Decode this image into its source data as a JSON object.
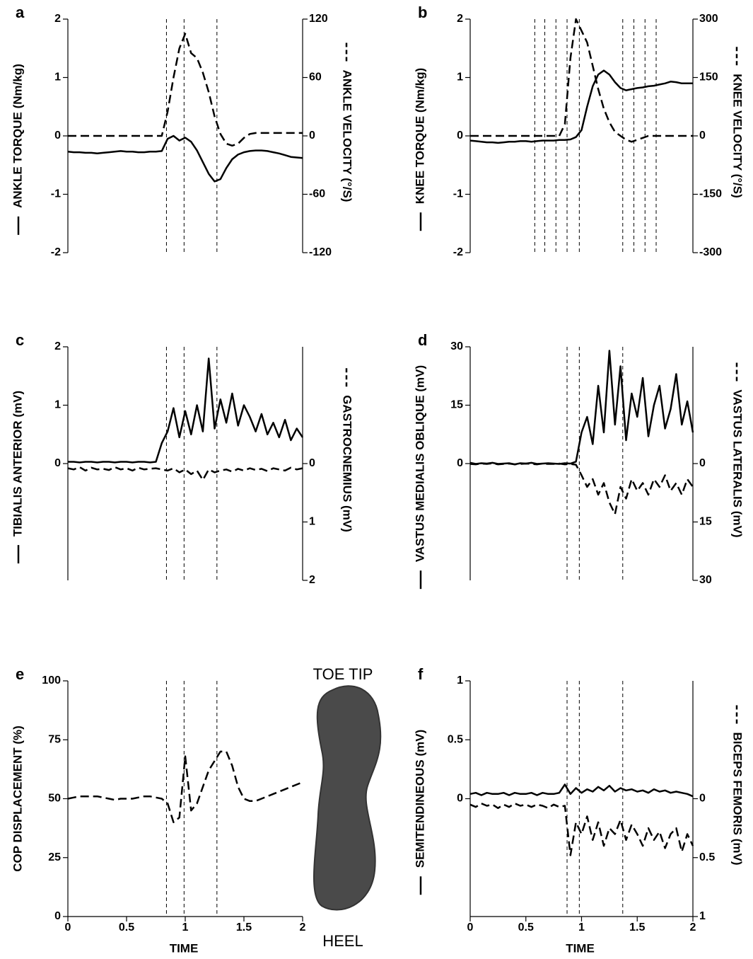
{
  "chart_data": [
    {
      "type": "line",
      "panel": "a",
      "ylabel": "ANKLE TORQUE (Nm/kg)",
      "y2label": "ANKLE VELOCITY (°/S)",
      "x": [
        0,
        0.05,
        0.1,
        0.15,
        0.2,
        0.25,
        0.3,
        0.35,
        0.4,
        0.45,
        0.5,
        0.55,
        0.6,
        0.65,
        0.7,
        0.75,
        0.8,
        0.85,
        0.9,
        0.95,
        1,
        1.05,
        1.1,
        1.15,
        1.2,
        1.25,
        1.3,
        1.35,
        1.4,
        1.45,
        1.5,
        1.55,
        1.6,
        1.65,
        1.7,
        1.75,
        1.8,
        1.85,
        1.9,
        1.95,
        2
      ],
      "xlim": [
        0,
        2
      ],
      "ylim": [
        -2,
        2
      ],
      "yticks": [
        -2,
        -1,
        0,
        1,
        2
      ],
      "y2lim": [
        -120,
        120
      ],
      "y2ticks": [
        -120,
        -60,
        0,
        60,
        120
      ],
      "vlines": [
        0.84,
        0.99,
        1.27
      ],
      "series": [
        {
          "color": "#000",
          "dash": false,
          "values": [
            -0.27,
            -0.28,
            -0.28,
            -0.29,
            -0.29,
            -0.3,
            -0.29,
            -0.28,
            -0.27,
            -0.26,
            -0.27,
            -0.27,
            -0.28,
            -0.28,
            -0.27,
            -0.27,
            -0.26,
            -0.05,
            0,
            -0.08,
            -0.03,
            -0.1,
            -0.25,
            -0.45,
            -0.65,
            -0.78,
            -0.74,
            -0.55,
            -0.4,
            -0.32,
            -0.28,
            -0.26,
            -0.25,
            -0.25,
            -0.26,
            -0.28,
            -0.3,
            -0.33,
            -0.36,
            -0.37,
            -0.38
          ]
        },
        {
          "color": "#000",
          "dash": true,
          "axis": "y2",
          "values": [
            0,
            0,
            0,
            0,
            0,
            0,
            0,
            0,
            0,
            0,
            0,
            0,
            0,
            0,
            0,
            0,
            0,
            25,
            60,
            90,
            105,
            85,
            80,
            65,
            45,
            20,
            2,
            -8,
            -10,
            -8,
            -2,
            2,
            3,
            3,
            3,
            3,
            3,
            3,
            3,
            3,
            3
          ]
        }
      ]
    },
    {
      "type": "line",
      "panel": "b",
      "ylabel": "KNEE TORQUE (Nm/kg)",
      "y2label": "KNEE VELOCITY (°/S)",
      "x": [
        0,
        0.05,
        0.1,
        0.15,
        0.2,
        0.25,
        0.3,
        0.35,
        0.4,
        0.45,
        0.5,
        0.55,
        0.6,
        0.65,
        0.7,
        0.75,
        0.8,
        0.85,
        0.9,
        0.95,
        1,
        1.05,
        1.1,
        1.15,
        1.2,
        1.25,
        1.3,
        1.35,
        1.4,
        1.45,
        1.5,
        1.55,
        1.6,
        1.65,
        1.7,
        1.75,
        1.8,
        1.85,
        1.9,
        1.95,
        2
      ],
      "xlim": [
        0,
        2
      ],
      "ylim": [
        -2,
        2
      ],
      "yticks": [
        -2,
        -1,
        0,
        1,
        2
      ],
      "y2lim": [
        -300,
        300
      ],
      "y2ticks": [
        -300,
        -150,
        0,
        150,
        300
      ],
      "vlines": [
        0.58,
        0.67,
        0.77,
        0.87,
        0.98,
        1.37,
        1.47,
        1.57,
        1.67
      ],
      "series": [
        {
          "color": "#000",
          "dash": false,
          "values": [
            -0.08,
            -0.09,
            -0.1,
            -0.11,
            -0.11,
            -0.12,
            -0.11,
            -0.1,
            -0.1,
            -0.09,
            -0.09,
            -0.1,
            -0.09,
            -0.08,
            -0.08,
            -0.08,
            -0.07,
            -0.07,
            -0.06,
            -0.02,
            0.1,
            0.5,
            0.85,
            1.05,
            1.12,
            1.05,
            0.92,
            0.82,
            0.78,
            0.8,
            0.82,
            0.83,
            0.85,
            0.86,
            0.88,
            0.9,
            0.93,
            0.92,
            0.9,
            0.9,
            0.9
          ]
        },
        {
          "color": "#000",
          "dash": true,
          "axis": "y2",
          "values": [
            0,
            0,
            0,
            0,
            0,
            0,
            0,
            0,
            0,
            0,
            0,
            0,
            0,
            0,
            0,
            0,
            0,
            30,
            200,
            300,
            270,
            240,
            180,
            120,
            70,
            35,
            10,
            0,
            -10,
            -15,
            -10,
            -5,
            0,
            0,
            0,
            0,
            0,
            0,
            0,
            0,
            0
          ]
        }
      ]
    },
    {
      "type": "line",
      "panel": "c",
      "ylabel": "TIBIALIS ANTERIOR (mV)",
      "y2label": "GASTROCNEMIUS (mV)",
      "x": [
        0,
        0.05,
        0.1,
        0.15,
        0.2,
        0.25,
        0.3,
        0.35,
        0.4,
        0.45,
        0.5,
        0.55,
        0.6,
        0.65,
        0.7,
        0.75,
        0.8,
        0.85,
        0.9,
        0.95,
        1,
        1.05,
        1.1,
        1.15,
        1.2,
        1.25,
        1.3,
        1.35,
        1.4,
        1.45,
        1.5,
        1.55,
        1.6,
        1.65,
        1.7,
        1.75,
        1.8,
        1.85,
        1.9,
        1.95,
        2
      ],
      "xlim": [
        0,
        2
      ],
      "ylim": [
        -2,
        2
      ],
      "yticks": [
        0,
        1,
        2
      ],
      "y2lim": [
        2,
        -2
      ],
      "y2ticks": [
        0,
        1,
        2
      ],
      "vlines": [
        0.84,
        0.99,
        1.27
      ],
      "series": [
        {
          "color": "#000",
          "dash": false,
          "values": [
            0.03,
            0.03,
            0.02,
            0.03,
            0.03,
            0.02,
            0.03,
            0.03,
            0.02,
            0.03,
            0.03,
            0.02,
            0.03,
            0.03,
            0.02,
            0.03,
            0.35,
            0.55,
            0.95,
            0.45,
            0.9,
            0.5,
            1.0,
            0.55,
            1.8,
            0.6,
            1.1,
            0.7,
            1.2,
            0.65,
            1.0,
            0.8,
            0.55,
            0.85,
            0.5,
            0.7,
            0.45,
            0.75,
            0.4,
            0.6,
            0.45
          ]
        },
        {
          "color": "#000",
          "dash": true,
          "axis": "y2",
          "values": [
            0.08,
            0.1,
            0.06,
            0.12,
            0.07,
            0.1,
            0.09,
            0.11,
            0.06,
            0.1,
            0.08,
            0.12,
            0.07,
            0.1,
            0.09,
            0.08,
            0.1,
            0.12,
            0.08,
            0.15,
            0.1,
            0.18,
            0.12,
            0.28,
            0.1,
            0.15,
            0.12,
            0.1,
            0.14,
            0.09,
            0.12,
            0.08,
            0.11,
            0.09,
            0.13,
            0.08,
            0.1,
            0.12,
            0.07,
            0.1,
            0.08
          ]
        }
      ]
    },
    {
      "type": "line",
      "panel": "d",
      "ylabel": "VASTUS MEDIALIS OBLIQUE (mV)",
      "y2label": "VASTUS LATERALIS (mV)",
      "x": [
        0,
        0.05,
        0.1,
        0.15,
        0.2,
        0.25,
        0.3,
        0.35,
        0.4,
        0.45,
        0.5,
        0.55,
        0.6,
        0.65,
        0.7,
        0.75,
        0.8,
        0.85,
        0.9,
        0.95,
        1,
        1.05,
        1.1,
        1.15,
        1.2,
        1.25,
        1.3,
        1.35,
        1.4,
        1.45,
        1.5,
        1.55,
        1.6,
        1.65,
        1.7,
        1.75,
        1.8,
        1.85,
        1.9,
        1.95,
        2
      ],
      "xlim": [
        0,
        2
      ],
      "ylim": [
        -30,
        30
      ],
      "yticks": [
        0,
        15,
        30
      ],
      "y2lim": [
        30,
        -30
      ],
      "y2ticks": [
        0,
        15,
        30
      ],
      "vlines": [
        0.87,
        0.98,
        1.37
      ],
      "series": [
        {
          "color": "#000",
          "dash": false,
          "values": [
            0.2,
            -0.1,
            0.1,
            0,
            0.2,
            -0.1,
            0,
            0.1,
            -0.2,
            0.1,
            0,
            0.2,
            -0.1,
            0,
            0.1,
            0,
            -0.1,
            0.1,
            0,
            0.5,
            8,
            12,
            5,
            20,
            8,
            29,
            10,
            25,
            6,
            18,
            12,
            22,
            7,
            15,
            20,
            9,
            14,
            23,
            10,
            16,
            8
          ]
        },
        {
          "color": "#000",
          "dash": true,
          "axis": "y2",
          "values": [
            0.1,
            0.2,
            0,
            0.1,
            -0.1,
            0.2,
            0.1,
            0,
            0.2,
            0.1,
            0,
            0.1,
            0.2,
            0,
            0.1,
            0.1,
            0,
            0.2,
            0.1,
            0.3,
            3,
            6,
            4,
            8,
            5,
            10,
            13,
            6,
            9,
            4,
            7,
            5,
            8,
            4,
            6,
            3,
            7,
            5,
            8,
            4,
            6
          ]
        }
      ]
    },
    {
      "type": "line",
      "panel": "e",
      "ylabel": "COP DISPLACEMENT (%)",
      "xlabel": "TIME",
      "top_label": "TOE TIP",
      "bottom_label": "HEEL",
      "x": [
        0,
        0.05,
        0.1,
        0.15,
        0.2,
        0.25,
        0.3,
        0.35,
        0.4,
        0.45,
        0.5,
        0.55,
        0.6,
        0.65,
        0.7,
        0.75,
        0.8,
        0.85,
        0.9,
        0.95,
        1,
        1.05,
        1.1,
        1.15,
        1.2,
        1.25,
        1.3,
        1.35,
        1.4,
        1.45,
        1.5,
        1.55,
        1.6,
        1.65,
        1.7,
        1.75,
        1.8,
        1.85,
        1.9,
        1.95,
        2
      ],
      "xlim": [
        0,
        2
      ],
      "xticks": [
        0,
        0.5,
        1,
        1.5,
        2
      ],
      "ylim": [
        0,
        100
      ],
      "yticks": [
        0,
        25,
        50,
        75,
        100
      ],
      "vlines": [
        0.84,
        0.99,
        1.27
      ],
      "series": [
        {
          "color": "#000",
          "dash": true,
          "values": [
            50,
            50.5,
            51,
            51,
            51,
            51,
            50.5,
            50,
            49.5,
            50,
            50,
            50,
            50.5,
            51,
            51,
            50.5,
            50,
            48,
            40,
            42,
            68,
            45,
            48,
            55,
            62,
            66,
            70,
            70,
            64,
            55,
            50,
            49,
            49,
            50,
            51,
            52,
            53,
            54,
            55,
            56,
            57
          ]
        }
      ]
    },
    {
      "type": "line",
      "panel": "f",
      "ylabel": "SEMITENDINEOUS (mV)",
      "y2label": "BICEPS FEMORIS (mV)",
      "xlabel": "TIME",
      "x": [
        0,
        0.05,
        0.1,
        0.15,
        0.2,
        0.25,
        0.3,
        0.35,
        0.4,
        0.45,
        0.5,
        0.55,
        0.6,
        0.65,
        0.7,
        0.75,
        0.8,
        0.85,
        0.9,
        0.95,
        1,
        1.05,
        1.1,
        1.15,
        1.2,
        1.25,
        1.3,
        1.35,
        1.4,
        1.45,
        1.5,
        1.55,
        1.6,
        1.65,
        1.7,
        1.75,
        1.8,
        1.85,
        1.9,
        1.95,
        2
      ],
      "xlim": [
        0,
        2
      ],
      "xticks": [
        0,
        0.5,
        1,
        1.5,
        2
      ],
      "ylim": [
        -1,
        1
      ],
      "yticks": [
        0,
        0.5,
        1
      ],
      "y2lim": [
        1,
        -1
      ],
      "y2ticks": [
        0,
        0.5,
        1
      ],
      "vlines": [
        0.87,
        0.98,
        1.37
      ],
      "series": [
        {
          "color": "#000",
          "dash": false,
          "values": [
            0.04,
            0.05,
            0.03,
            0.05,
            0.04,
            0.04,
            0.05,
            0.03,
            0.05,
            0.04,
            0.04,
            0.05,
            0.03,
            0.05,
            0.04,
            0.04,
            0.05,
            0.12,
            0.04,
            0.09,
            0.05,
            0.08,
            0.06,
            0.1,
            0.07,
            0.11,
            0.06,
            0.09,
            0.07,
            0.08,
            0.06,
            0.07,
            0.05,
            0.08,
            0.06,
            0.07,
            0.05,
            0.06,
            0.05,
            0.04,
            0.02
          ]
        },
        {
          "color": "#000",
          "dash": true,
          "axis": "y2",
          "values": [
            0.05,
            0.07,
            0.04,
            0.06,
            0.05,
            0.08,
            0.05,
            0.07,
            0.04,
            0.06,
            0.05,
            0.07,
            0.05,
            0.06,
            0.08,
            0.05,
            0.07,
            0.06,
            0.48,
            0.2,
            0.3,
            0.15,
            0.35,
            0.2,
            0.4,
            0.25,
            0.3,
            0.18,
            0.35,
            0.22,
            0.3,
            0.4,
            0.25,
            0.35,
            0.28,
            0.42,
            0.3,
            0.25,
            0.45,
            0.3,
            0.4
          ]
        }
      ]
    }
  ]
}
